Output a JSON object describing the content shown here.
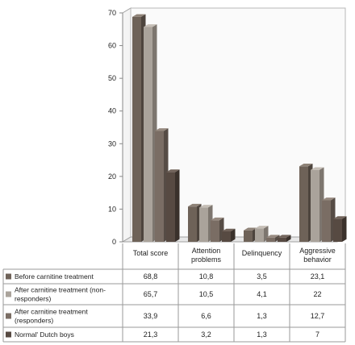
{
  "chart_data": {
    "type": "bar",
    "style": "3d-clustered-column-with-data-table",
    "categories": [
      "Total score",
      "Attention problems",
      "Delinquency",
      "Aggressive behavior"
    ],
    "category_lines": [
      [
        "Total score"
      ],
      [
        "Attention",
        "problems"
      ],
      [
        "Delinquency"
      ],
      [
        "Aggressive",
        "behavior"
      ]
    ],
    "series": [
      {
        "name": "Before carnitine treatment",
        "name_lines": [
          "Before carnitine treatment"
        ],
        "values": [
          68.8,
          10.8,
          3.5,
          23.1
        ],
        "labels": [
          "68,8",
          "10,8",
          "3,5",
          "23,1"
        ],
        "color": "#6e6258",
        "dark": "#4d443d",
        "light": "#8e8277"
      },
      {
        "name": "After carnitine treatment (non-responders)",
        "name_lines": [
          "After carnitine treatment (non-",
          "responders)"
        ],
        "values": [
          65.7,
          10.5,
          4.1,
          22
        ],
        "labels": [
          "65,7",
          "10,5",
          "4,1",
          "22"
        ],
        "color": "#aaa39b",
        "dark": "#7d766f",
        "light": "#c5beb6"
      },
      {
        "name": "After carnitine treatment (responders)",
        "name_lines": [
          "After carnitine treatment",
          "(responders)"
        ],
        "values": [
          33.9,
          6.6,
          1.3,
          12.7
        ],
        "labels": [
          "33,9",
          "6,6",
          "1,3",
          "12,7"
        ],
        "color": "#7a6d64",
        "dark": "#564c45",
        "light": "#978a80"
      },
      {
        "name": "Normal' Dutch boys",
        "name_lines": [
          "Normal' Dutch boys"
        ],
        "values": [
          21.3,
          3.2,
          1.3,
          7
        ],
        "labels": [
          "21,3",
          "3,2",
          "1,3",
          "7"
        ],
        "color": "#574a42",
        "dark": "#3a312b",
        "light": "#72645b"
      }
    ],
    "ylim": [
      0,
      70
    ],
    "yticks": [
      0,
      10,
      20,
      30,
      40,
      50,
      60,
      70
    ],
    "grid": false,
    "legend": "data-table-below"
  }
}
